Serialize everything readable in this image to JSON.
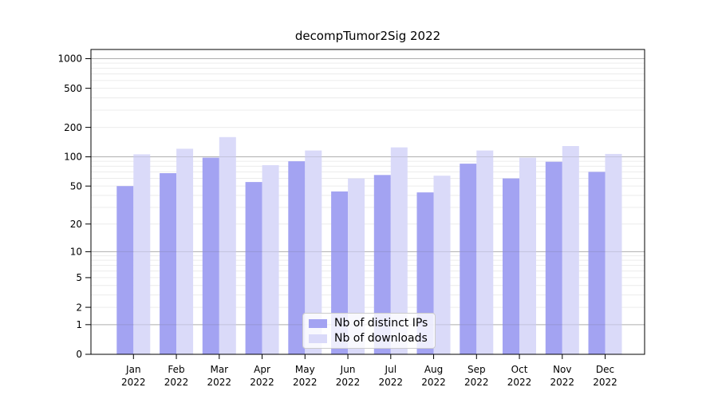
{
  "chart_data": {
    "type": "bar",
    "title": "decompTumor2Sig 2022",
    "categories": [
      "Jan",
      "Feb",
      "Mar",
      "Apr",
      "May",
      "Jun",
      "Jul",
      "Aug",
      "Sep",
      "Oct",
      "Nov",
      "Dec"
    ],
    "x_tick_second_line": "2022",
    "series": [
      {
        "name": "Nb of distinct IPs",
        "color": "#a3a3f2",
        "values": [
          50,
          68,
          98,
          55,
          90,
          44,
          65,
          43,
          85,
          60,
          89,
          70
        ]
      },
      {
        "name": "Nb of downloads",
        "color": "#dadaf9",
        "values": [
          106,
          121,
          159,
          82,
          116,
          60,
          125,
          64,
          116,
          98,
          129,
          107
        ]
      }
    ],
    "yscale": "log1p",
    "y_ticks": [
      0,
      1,
      2,
      5,
      10,
      20,
      50,
      100,
      200,
      500,
      1000
    ],
    "major_grid_values": [
      1,
      10,
      100,
      1000
    ],
    "ylim": [
      0,
      1240
    ],
    "grid": true,
    "legend_position": "lower center",
    "xlabel": "",
    "ylabel": ""
  },
  "colors": {
    "axis": "#000000",
    "text": "#000000",
    "major_grid": "#c3c3c3",
    "minor_grid": "#ececec",
    "grid_overlay": "rgba(90,90,90,0.18)",
    "background": "#ffffff"
  }
}
